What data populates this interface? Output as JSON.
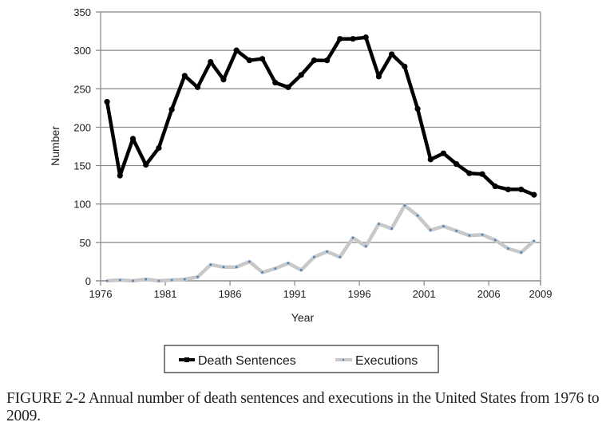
{
  "caption": "FIGURE 2-2 Annual number of death sentences and executions in the United States from 1976 to 2009.",
  "chart_data": {
    "type": "line",
    "title": "",
    "xlabel": "Year",
    "ylabel": "Number",
    "ylim": [
      0,
      350
    ],
    "yticks": [
      0,
      50,
      100,
      150,
      200,
      250,
      300,
      350
    ],
    "xtick_labels": [
      "1976",
      "1981",
      "1986",
      "1991",
      "1996",
      "2001",
      "2006",
      "2009"
    ],
    "grid": "horizontal",
    "legend_position": "bottom",
    "x": [
      1976,
      1977,
      1978,
      1979,
      1980,
      1981,
      1982,
      1983,
      1984,
      1985,
      1986,
      1987,
      1988,
      1989,
      1990,
      1991,
      1992,
      1993,
      1994,
      1995,
      1996,
      1997,
      1998,
      1999,
      2000,
      2001,
      2002,
      2003,
      2004,
      2005,
      2006,
      2007,
      2008,
      2009
    ],
    "series": [
      {
        "name": "Death Sentences",
        "color": "#000000",
        "values": [
          233,
          137,
          185,
          151,
          173,
          223,
          267,
          252,
          285,
          262,
          300,
          287,
          289,
          258,
          252,
          268,
          287,
          287,
          315,
          315,
          317,
          266,
          295,
          279,
          224,
          158,
          166,
          152,
          140,
          139,
          123,
          119,
          119,
          112
        ]
      },
      {
        "name": "Executions",
        "color": "#c8c8c8",
        "marker_color": "#4f81bd",
        "values": [
          0,
          1,
          0,
          2,
          0,
          1,
          2,
          5,
          21,
          18,
          18,
          25,
          11,
          16,
          23,
          14,
          31,
          38,
          31,
          56,
          45,
          74,
          68,
          98,
          85,
          66,
          71,
          65,
          59,
          60,
          53,
          42,
          37,
          52
        ]
      }
    ]
  }
}
